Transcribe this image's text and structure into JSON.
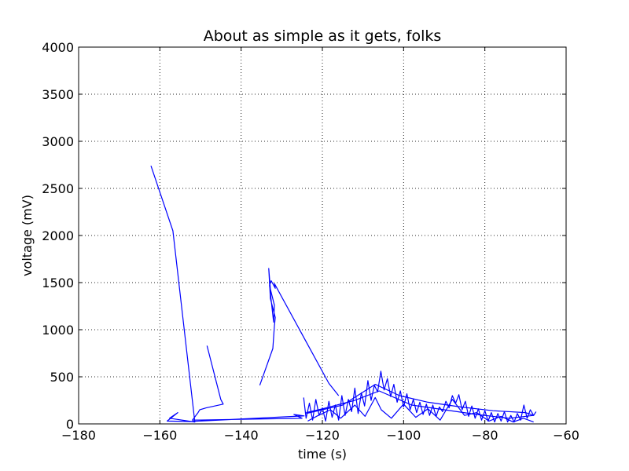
{
  "chart_data": {
    "type": "line",
    "title": "About as simple as it gets, folks",
    "xlabel": "time (s)",
    "ylabel": "voltage (mV)",
    "xlim": [
      -180,
      -60
    ],
    "ylim": [
      0,
      4000
    ],
    "xticks": [
      -180,
      -160,
      -140,
      -120,
      -100,
      -80,
      -60
    ],
    "yticks": [
      0,
      500,
      1000,
      1500,
      2000,
      2500,
      3000,
      3500,
      4000
    ],
    "xtick_labels": [
      "−180",
      "−160",
      "−140",
      "−120",
      "−100",
      "−80",
      "−60"
    ],
    "ytick_labels": [
      "0",
      "500",
      "1000",
      "1500",
      "2000",
      "2500",
      "3000",
      "3500",
      "4000"
    ],
    "grid": true,
    "line_color": "#0000ff",
    "series": [
      {
        "x": [
          -162.2,
          -156.8,
          -151.4,
          -157.6,
          -155.6,
          -158.2,
          -152.6,
          -124.5,
          -127.0,
          -125.0,
          -152.0,
          -150.6,
          -150.2,
          -148.6,
          -144.4,
          -145.0,
          -148.4
        ],
        "y": [
          2740,
          2050,
          20,
          60,
          120,
          30,
          25,
          85,
          100,
          60,
          40,
          120,
          150,
          170,
          210,
          260,
          830
        ]
      },
      {
        "x": [
          -135.4,
          -132.2,
          -131.8,
          -131.6,
          -132.8,
          -133.2,
          -132.8,
          -131.8,
          -132.0,
          -133.0,
          -132.6,
          -131.6,
          -131.8,
          -118.4,
          -116.0
        ],
        "y": [
          410,
          800,
          1040,
          1130,
          1330,
          1650,
          1430,
          1260,
          1080,
          1470,
          1520,
          1440,
          1490,
          430,
          300
        ]
      },
      {
        "x": [
          -124.6,
          -124.0,
          -123.2,
          -122.4,
          -121.6,
          -120.8,
          -120.0,
          -119.2,
          -118.4,
          -117.6,
          -116.8,
          -116.0,
          -115.2,
          -114.4,
          -113.6,
          -112.8,
          -112.0,
          -111.2,
          -110.4,
          -109.6,
          -108.8,
          -108.0,
          -107.2,
          -106.4,
          -105.6,
          -104.8,
          -104.0,
          -103.2,
          -102.4,
          -101.6,
          -100.8,
          -100.0,
          -99.2,
          -98.4,
          -97.6,
          -96.8,
          -96.0,
          -95.2,
          -94.4,
          -93.6,
          -92.8,
          -92.0,
          -91.2,
          -90.4,
          -89.6,
          -88.8,
          -88.0,
          -87.2,
          -86.4,
          -85.6,
          -84.8,
          -84.0,
          -83.2,
          -82.4,
          -81.6,
          -80.8,
          -80.0,
          -79.2,
          -78.4,
          -77.6,
          -76.8,
          -76.0,
          -75.2,
          -74.4,
          -73.6,
          -72.8,
          -72.0,
          -71.2,
          -70.4,
          -69.6,
          -68.8,
          -68.0,
          -67.4
        ],
        "y": [
          280,
          60,
          220,
          40,
          260,
          90,
          170,
          30,
          240,
          70,
          200,
          40,
          300,
          90,
          260,
          130,
          380,
          110,
          330,
          190,
          460,
          250,
          410,
          340,
          560,
          360,
          480,
          290,
          420,
          230,
          350,
          180,
          320,
          150,
          260,
          120,
          230,
          100,
          210,
          90,
          200,
          80,
          180,
          130,
          240,
          170,
          300,
          220,
          310,
          150,
          240,
          80,
          190,
          60,
          160,
          40,
          140,
          30,
          120,
          20,
          110,
          30,
          130,
          20,
          90,
          20,
          110,
          40,
          200,
          60,
          150,
          90,
          130
        ]
      },
      {
        "x": [
          -124.0,
          -115.0,
          -107.0,
          -101.0,
          -94.0,
          -86.0,
          -78.0,
          -70.0,
          -68.0,
          -74.0,
          -82.0,
          -90.0,
          -98.0,
          -106.0,
          -112.0,
          -120.0,
          -124.0
        ],
        "y": [
          110,
          200,
          420,
          300,
          230,
          180,
          140,
          120,
          90,
          60,
          100,
          150,
          200,
          350,
          250,
          160,
          120
        ]
      },
      {
        "x": [
          -123.6,
          -121.0,
          -118.0,
          -115.5,
          -112.0,
          -109.5,
          -107.0,
          -105.5,
          -103.0,
          -100.0,
          -97.0,
          -94.0,
          -91.0,
          -88.0,
          -85.0,
          -82.0,
          -79.0,
          -76.0,
          -73.0,
          -70.5,
          -68.0
        ],
        "y": [
          30,
          90,
          150,
          60,
          200,
          80,
          280,
          150,
          60,
          210,
          70,
          160,
          40,
          260,
          90,
          120,
          30,
          80,
          20,
          60,
          20
        ]
      }
    ]
  }
}
